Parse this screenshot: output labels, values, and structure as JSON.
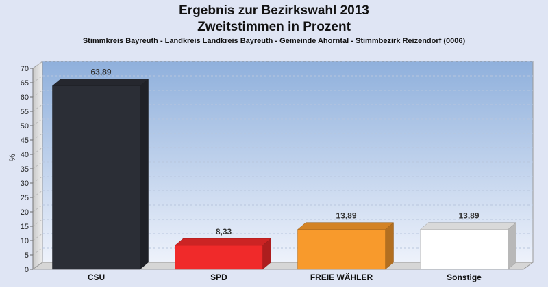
{
  "title": "Ergebnis zur Bezirkswahl 2013",
  "subtitle": "Zweitstimmen in Prozent",
  "caption": "Stimmkreis Bayreuth - Landkreis Landkreis Bayreuth - Gemeinde Ahorntal - Stimmbezirk Reizendorf (0006)",
  "chart_data": {
    "type": "bar",
    "ylabel": "%",
    "ylim": [
      0,
      70
    ],
    "ytick_step": 5,
    "grid": true,
    "categories": [
      "CSU",
      "SPD",
      "FREIE WÄHLER",
      "Sonstige"
    ],
    "values": [
      63.89,
      8.33,
      13.89,
      13.89
    ],
    "value_labels": [
      "63,89",
      "8,33",
      "13,89",
      "13,89"
    ],
    "colors": [
      "#2b2e36",
      "#f02a2a",
      "#f89a2c",
      "#ffffff"
    ]
  }
}
